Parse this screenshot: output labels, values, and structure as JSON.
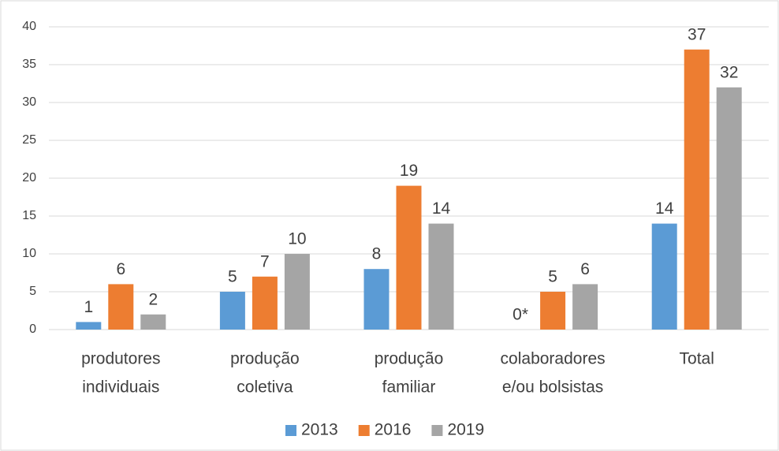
{
  "chart_data": {
    "type": "bar",
    "categories": [
      [
        "produtores",
        "individuais"
      ],
      [
        "produção",
        "coletiva"
      ],
      [
        "produção",
        "familiar"
      ],
      [
        "colaboradores",
        "e/ou bolsistas"
      ],
      [
        "Total"
      ]
    ],
    "series": [
      {
        "name": "2013",
        "color": "#5b9bd5",
        "values": [
          1,
          5,
          8,
          0,
          14
        ],
        "value_labels": [
          "1",
          "5",
          "8",
          "0*",
          "14"
        ]
      },
      {
        "name": "2016",
        "color": "#ed7d31",
        "values": [
          6,
          7,
          19,
          5,
          37
        ]
      },
      {
        "name": "2019",
        "color": "#a5a5a5",
        "values": [
          2,
          10,
          14,
          6,
          32
        ]
      }
    ],
    "ylim": [
      0,
      40
    ],
    "yticks": [
      0,
      5,
      10,
      15,
      20,
      25,
      30,
      35,
      40
    ],
    "grid": true,
    "legend": "bottom"
  }
}
